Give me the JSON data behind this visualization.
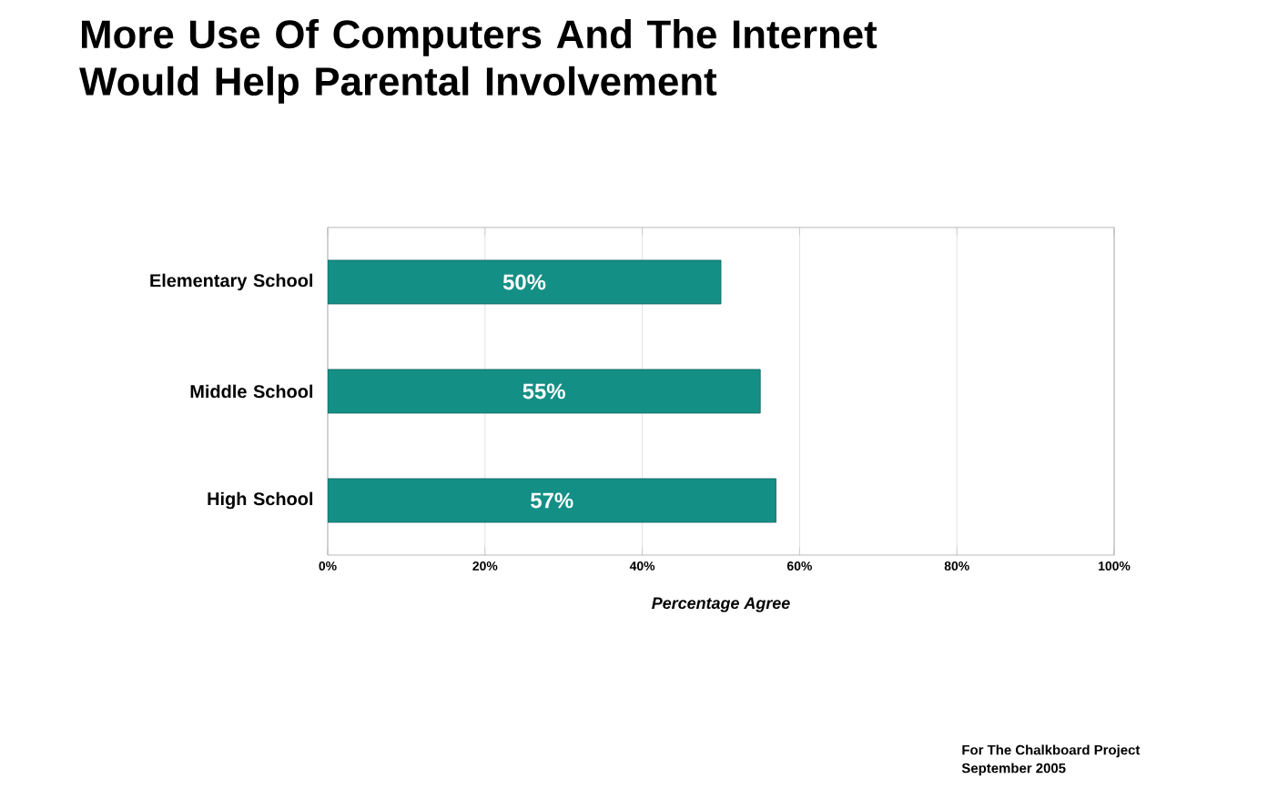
{
  "chart_data": {
    "type": "bar",
    "orientation": "horizontal",
    "title": "More Use Of Computers And The Internet Would Help Parental Involvement",
    "categories": [
      "Elementary School",
      "Middle School",
      "High School"
    ],
    "values": [
      50,
      55,
      57
    ],
    "value_labels": [
      "50%",
      "55%",
      "57%"
    ],
    "color": "#148f86",
    "xlim": [
      0,
      100
    ],
    "xticks": [
      {
        "value": 0,
        "label": "0%"
      },
      {
        "value": 20,
        "label": "20%"
      },
      {
        "value": 40,
        "label": "40%"
      },
      {
        "value": 60,
        "label": "60%"
      },
      {
        "value": 80,
        "label": "80%"
      },
      {
        "value": 100,
        "label": "100%"
      }
    ],
    "xlabel": "Percentage Agree",
    "grid": "x",
    "legend": false,
    "annotations": [
      "For The Chalkboard Project",
      "September 2005"
    ]
  }
}
